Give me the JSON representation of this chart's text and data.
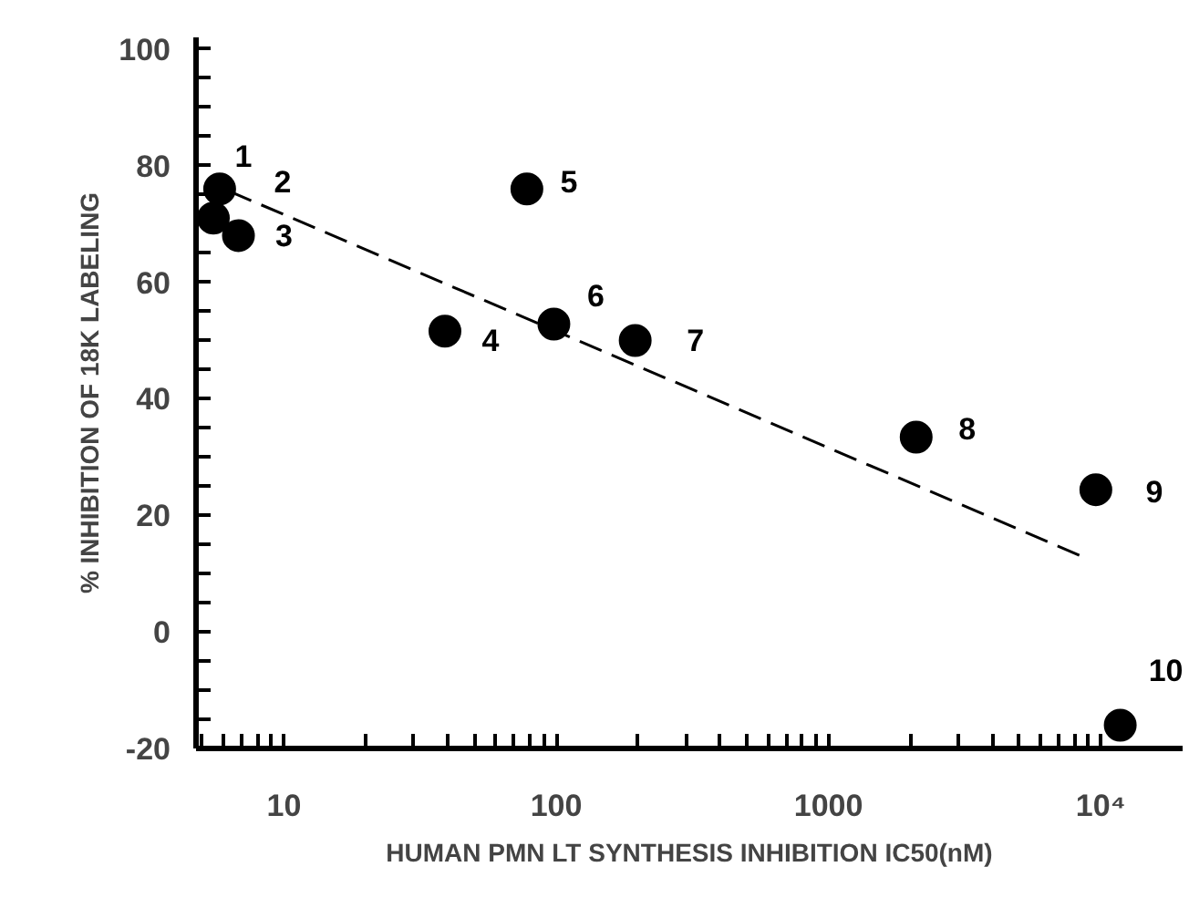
{
  "chart_data": {
    "type": "scatter",
    "xlabel": "HUMAN PMN LT SYNTHESIS INHIBITION IC50(nM)",
    "ylabel": "% INHIBITION OF 18K LABELING",
    "log": "x",
    "marker": "circle",
    "xlim": [
      4.75,
      20000
    ],
    "ylim": [
      -20,
      102
    ],
    "xticks": [
      10,
      100,
      1000,
      {
        "value": 10000,
        "label": "10⁴"
      },
      {
        "value": 5,
        "label": null
      },
      {
        "value": 6,
        "label": null
      },
      {
        "value": 7,
        "label": null
      },
      {
        "value": 8,
        "label": null
      },
      {
        "value": 9,
        "label": null
      },
      {
        "value": 20,
        "label": null
      },
      {
        "value": 30,
        "label": null
      },
      {
        "value": 40,
        "label": null
      },
      {
        "value": 50,
        "label": null
      },
      {
        "value": 60,
        "label": null
      },
      {
        "value": 70,
        "label": null
      },
      {
        "value": 80,
        "label": null
      },
      {
        "value": 90,
        "label": null
      },
      {
        "value": 200,
        "label": null
      },
      {
        "value": 300,
        "label": null
      },
      {
        "value": 400,
        "label": null
      },
      {
        "value": 500,
        "label": null
      },
      {
        "value": 600,
        "label": null
      },
      {
        "value": 700,
        "label": null
      },
      {
        "value": 800,
        "label": null
      },
      {
        "value": 900,
        "label": null
      },
      {
        "value": 2000,
        "label": null
      },
      {
        "value": 3000,
        "label": null
      },
      {
        "value": 4000,
        "label": null
      },
      {
        "value": 5000,
        "label": null
      },
      {
        "value": 6000,
        "label": null
      },
      {
        "value": 7000,
        "label": null
      },
      {
        "value": 8000,
        "label": null
      },
      {
        "value": 9000,
        "label": null
      }
    ],
    "yticks": [
      -20,
      0,
      20,
      40,
      60,
      80,
      100,
      {
        "value": -15,
        "label": null
      },
      {
        "value": -10,
        "label": null
      },
      {
        "value": -5,
        "label": null
      },
      {
        "value": 5,
        "label": null
      },
      {
        "value": 10,
        "label": null
      },
      {
        "value": 15,
        "label": null
      },
      {
        "value": 25,
        "label": null
      },
      {
        "value": 30,
        "label": null
      },
      {
        "value": 35,
        "label": null
      },
      {
        "value": 45,
        "label": null
      },
      {
        "value": 50,
        "label": null
      },
      {
        "value": 55,
        "label": null
      },
      {
        "value": 65,
        "label": null
      },
      {
        "value": 70,
        "label": null
      },
      {
        "value": 75,
        "label": null
      },
      {
        "value": 85,
        "label": null
      },
      {
        "value": 90,
        "label": null
      },
      {
        "value": 95,
        "label": null
      }
    ],
    "series": [
      {
        "color": "#000000",
        "x": [
          5.8,
          5.5,
          6.8,
          39,
          78,
          98,
          195,
          2100,
          9600,
          11800
        ],
        "values": [
          76,
          71,
          68,
          51.6,
          76,
          52.8,
          50,
          33.4,
          24.4,
          -16
        ]
      },
      {
        "type": "line",
        "color": "#000000",
        "line_style": "dashed",
        "marker": "none",
        "x": [
          6.3,
          8500
        ],
        "values": [
          75.6,
          13
        ]
      }
    ],
    "annotations": [
      {
        "text": "1",
        "x": 5.8,
        "y": 76
      },
      {
        "text": "2",
        "x": 5.5,
        "y": 71
      },
      {
        "text": "3",
        "x": 6.8,
        "y": 68
      },
      {
        "text": "4",
        "x": 39,
        "y": 51.6
      },
      {
        "text": "5",
        "x": 78,
        "y": 76
      },
      {
        "text": "6",
        "x": 98,
        "y": 52.8
      },
      {
        "text": "7",
        "x": 195,
        "y": 50
      },
      {
        "text": "8",
        "x": 2100,
        "y": 33.4
      },
      {
        "text": "9",
        "x": 9600,
        "y": 24.4
      },
      {
        "text": "10",
        "x": 11800,
        "y": -16
      }
    ]
  }
}
